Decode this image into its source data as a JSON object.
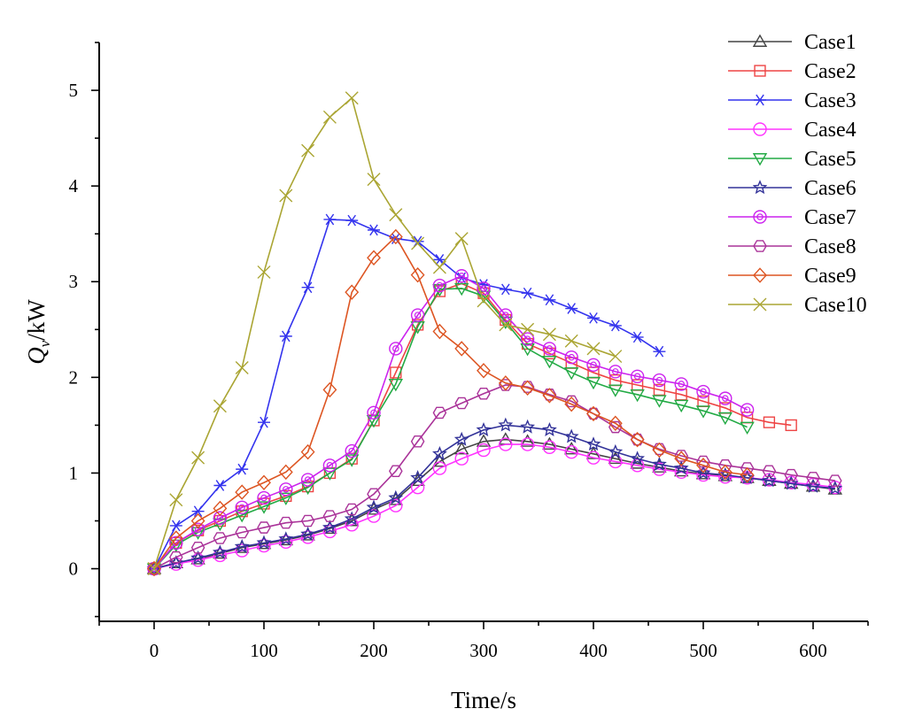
{
  "chart_data": {
    "type": "line",
    "title": "",
    "xlabel": "Time/s",
    "ylabel": "Q_v/kW",
    "ylabel_main": "Q",
    "ylabel_sub": "v",
    "ylabel_unit": "/kW",
    "xlim": [
      -50,
      650
    ],
    "ylim": [
      -0.55,
      5.5
    ],
    "xticks": [
      "0",
      "100",
      "200",
      "300",
      "400",
      "500",
      "600"
    ],
    "yticks": [
      "0",
      "1",
      "2",
      "3",
      "4",
      "5"
    ],
    "xtick_values": [
      0,
      100,
      200,
      300,
      400,
      500,
      600
    ],
    "ytick_values": [
      0,
      1,
      2,
      3,
      4,
      5
    ],
    "grid": false,
    "legend_position": "top-right",
    "series": [
      {
        "name": "Case1",
        "color": "#444444",
        "marker": "triangle",
        "x": [
          0,
          20,
          40,
          60,
          80,
          100,
          120,
          140,
          160,
          180,
          200,
          220,
          240,
          260,
          280,
          300,
          320,
          340,
          360,
          380,
          400,
          420,
          440,
          460,
          480,
          500,
          520,
          540,
          560,
          580,
          600,
          620
        ],
        "y": [
          0,
          0.06,
          0.1,
          0.16,
          0.22,
          0.26,
          0.3,
          0.35,
          0.42,
          0.5,
          0.62,
          0.72,
          0.92,
          1.12,
          1.25,
          1.33,
          1.35,
          1.33,
          1.3,
          1.25,
          1.2,
          1.15,
          1.1,
          1.06,
          1.02,
          0.99,
          0.97,
          0.95,
          0.92,
          0.89,
          0.86,
          0.83
        ]
      },
      {
        "name": "Case2",
        "color": "#ee4444",
        "marker": "square",
        "x": [
          0,
          20,
          40,
          60,
          80,
          100,
          120,
          140,
          160,
          180,
          200,
          220,
          240,
          260,
          280,
          300,
          320,
          340,
          360,
          380,
          400,
          420,
          440,
          460,
          480,
          500,
          520,
          540,
          560,
          580
        ],
        "y": [
          0,
          0.27,
          0.4,
          0.5,
          0.6,
          0.68,
          0.76,
          0.86,
          1.0,
          1.15,
          1.55,
          2.05,
          2.55,
          2.9,
          2.98,
          2.88,
          2.6,
          2.35,
          2.25,
          2.15,
          2.05,
          1.97,
          1.92,
          1.87,
          1.82,
          1.75,
          1.68,
          1.58,
          1.53,
          1.5
        ]
      },
      {
        "name": "Case3",
        "color": "#3333ee",
        "marker": "asterisk",
        "x": [
          0,
          20,
          40,
          60,
          80,
          100,
          120,
          140,
          160,
          180,
          200,
          220,
          240,
          260,
          280,
          300,
          320,
          340,
          360,
          380,
          400,
          420,
          440,
          460
        ],
        "y": [
          0,
          0.45,
          0.6,
          0.87,
          1.04,
          1.53,
          2.43,
          2.94,
          3.65,
          3.64,
          3.54,
          3.45,
          3.42,
          3.23,
          3.04,
          2.97,
          2.92,
          2.88,
          2.81,
          2.72,
          2.62,
          2.54,
          2.42,
          2.27
        ]
      },
      {
        "name": "Case4",
        "color": "#ff33ff",
        "marker": "circle",
        "x": [
          0,
          20,
          40,
          60,
          80,
          100,
          120,
          140,
          160,
          180,
          200,
          220,
          240,
          260,
          280,
          300,
          320,
          340,
          360,
          380,
          400,
          420,
          440,
          460,
          480,
          500,
          520,
          540,
          560,
          580,
          600,
          620
        ],
        "y": [
          0,
          0.05,
          0.09,
          0.14,
          0.19,
          0.24,
          0.28,
          0.33,
          0.39,
          0.46,
          0.55,
          0.66,
          0.85,
          1.05,
          1.15,
          1.24,
          1.3,
          1.3,
          1.27,
          1.22,
          1.16,
          1.12,
          1.08,
          1.04,
          1.01,
          0.98,
          0.96,
          0.95,
          0.93,
          0.9,
          0.88,
          0.85
        ]
      },
      {
        "name": "Case5",
        "color": "#22aa44",
        "marker": "triangle-down",
        "x": [
          0,
          20,
          40,
          60,
          80,
          100,
          120,
          140,
          160,
          180,
          200,
          220,
          240,
          260,
          280,
          300,
          320,
          340,
          360,
          380,
          400,
          420,
          440,
          460,
          480,
          500,
          520,
          540
        ],
        "y": [
          0,
          0.25,
          0.38,
          0.47,
          0.56,
          0.65,
          0.74,
          0.85,
          1.0,
          1.14,
          1.55,
          1.93,
          2.53,
          2.92,
          2.93,
          2.85,
          2.58,
          2.3,
          2.17,
          2.05,
          1.95,
          1.87,
          1.82,
          1.76,
          1.71,
          1.65,
          1.58,
          1.48
        ]
      },
      {
        "name": "Case6",
        "color": "#333399",
        "marker": "star",
        "x": [
          0,
          20,
          40,
          60,
          80,
          100,
          120,
          140,
          160,
          180,
          200,
          220,
          240,
          260,
          280,
          300,
          320,
          340,
          360,
          380,
          400,
          420,
          440,
          460,
          480,
          500,
          520,
          540,
          560,
          580,
          600,
          620
        ],
        "y": [
          0,
          0.06,
          0.11,
          0.17,
          0.23,
          0.27,
          0.31,
          0.36,
          0.43,
          0.52,
          0.64,
          0.74,
          0.95,
          1.2,
          1.35,
          1.45,
          1.5,
          1.48,
          1.45,
          1.38,
          1.3,
          1.22,
          1.15,
          1.09,
          1.05,
          1.0,
          0.98,
          0.95,
          0.92,
          0.89,
          0.86,
          0.84
        ]
      },
      {
        "name": "Case7",
        "color": "#cc22ee",
        "marker": "circle-dot",
        "x": [
          0,
          20,
          40,
          60,
          80,
          100,
          120,
          140,
          160,
          180,
          200,
          220,
          240,
          260,
          280,
          300,
          320,
          340,
          360,
          380,
          400,
          420,
          440,
          460,
          480,
          500,
          520,
          540
        ],
        "y": [
          0,
          0.27,
          0.41,
          0.53,
          0.64,
          0.74,
          0.83,
          0.93,
          1.08,
          1.23,
          1.63,
          2.3,
          2.65,
          2.96,
          3.06,
          2.93,
          2.65,
          2.4,
          2.3,
          2.21,
          2.13,
          2.06,
          2.01,
          1.97,
          1.93,
          1.85,
          1.78,
          1.66
        ]
      },
      {
        "name": "Case8",
        "color": "#aa3399",
        "marker": "hexagon",
        "x": [
          0,
          20,
          40,
          60,
          80,
          100,
          120,
          140,
          160,
          180,
          200,
          220,
          240,
          260,
          280,
          300,
          320,
          340,
          360,
          380,
          400,
          420,
          440,
          460,
          480,
          500,
          520,
          540,
          560,
          580,
          600,
          620
        ],
        "y": [
          0,
          0.12,
          0.22,
          0.32,
          0.38,
          0.43,
          0.48,
          0.5,
          0.55,
          0.62,
          0.78,
          1.02,
          1.33,
          1.63,
          1.73,
          1.83,
          1.92,
          1.9,
          1.82,
          1.75,
          1.62,
          1.48,
          1.35,
          1.25,
          1.18,
          1.12,
          1.08,
          1.05,
          1.02,
          0.98,
          0.95,
          0.92
        ]
      },
      {
        "name": "Case9",
        "color": "#dd5522",
        "marker": "diamond",
        "x": [
          0,
          20,
          40,
          60,
          80,
          100,
          120,
          140,
          160,
          180,
          200,
          220,
          240,
          260,
          280,
          300,
          320,
          340,
          360,
          380,
          400,
          420,
          440,
          460,
          480,
          500,
          520,
          540
        ],
        "y": [
          0,
          0.32,
          0.5,
          0.63,
          0.8,
          0.9,
          1.01,
          1.22,
          1.87,
          2.89,
          3.25,
          3.47,
          3.07,
          2.48,
          2.3,
          2.07,
          1.94,
          1.89,
          1.81,
          1.72,
          1.62,
          1.52,
          1.35,
          1.24,
          1.15,
          1.08,
          1.01,
          0.98
        ]
      },
      {
        "name": "Case10",
        "color": "#aaa533",
        "marker": "cross",
        "x": [
          0,
          20,
          40,
          60,
          80,
          100,
          120,
          140,
          160,
          180,
          200,
          220,
          240,
          260,
          280,
          300,
          320,
          340,
          360,
          380,
          400,
          420
        ],
        "y": [
          0,
          0.72,
          1.16,
          1.7,
          2.1,
          3.1,
          3.9,
          4.37,
          4.72,
          4.92,
          4.07,
          3.7,
          3.4,
          3.15,
          3.45,
          2.8,
          2.55,
          2.5,
          2.45,
          2.38,
          2.3,
          2.22
        ]
      }
    ]
  }
}
